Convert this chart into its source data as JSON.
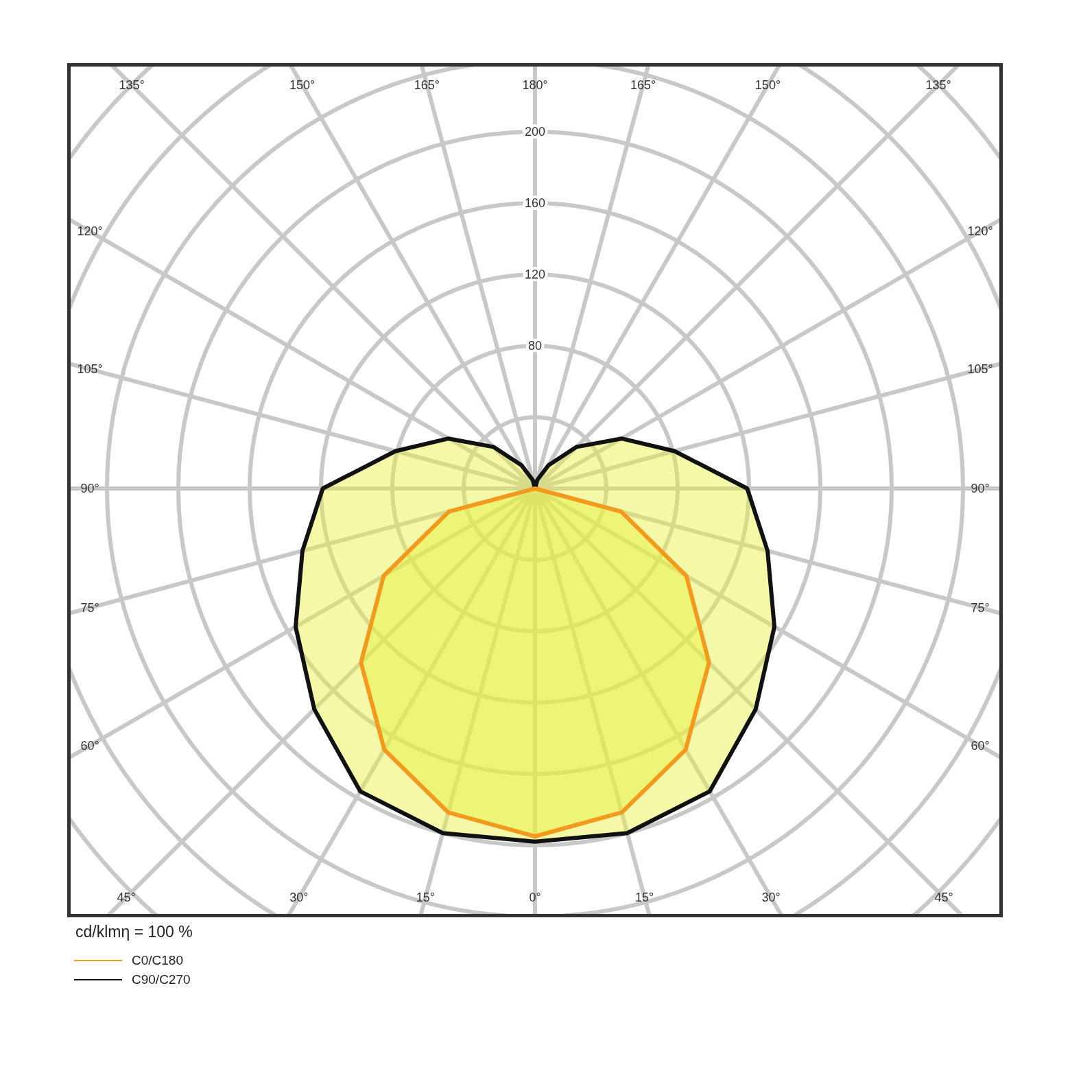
{
  "chart_data": {
    "type": "radar",
    "annotations": [
      "cd/klmη = 100 %"
    ],
    "categories": [
      "180°",
      "165°",
      "150°",
      "135°",
      "120°",
      "105°",
      "90°",
      "75°",
      "60°",
      "45°",
      "30°",
      "15°",
      "0°",
      "15°",
      "30°",
      "45°",
      "60°",
      "75°",
      "90°",
      "105°",
      "120°",
      "135°",
      "150°",
      "165°"
    ],
    "series": [
      {
        "name": "C0/C180",
        "color": "#f39a1e",
        "values": [
          0,
          0,
          0,
          0,
          0,
          0,
          0,
          50,
          98,
          138,
          169,
          188,
          195,
          188,
          169,
          138,
          98,
          50,
          0,
          0,
          0,
          0,
          0,
          0
        ]
      },
      {
        "name": "C90/C270",
        "color": "#111111",
        "values": [
          0,
          5,
          15,
          33,
          56,
          81,
          119,
          135,
          155,
          175,
          196,
          200,
          198,
          200,
          196,
          175,
          155,
          135,
          119,
          81,
          56,
          33,
          15,
          5
        ]
      }
    ],
    "ylim": [
      0,
      360
    ],
    "yticks": [
      80,
      120,
      160,
      200
    ],
    "grid": true,
    "legend": "bottom left",
    "marker": "none",
    "line_style": "solid"
  }
}
